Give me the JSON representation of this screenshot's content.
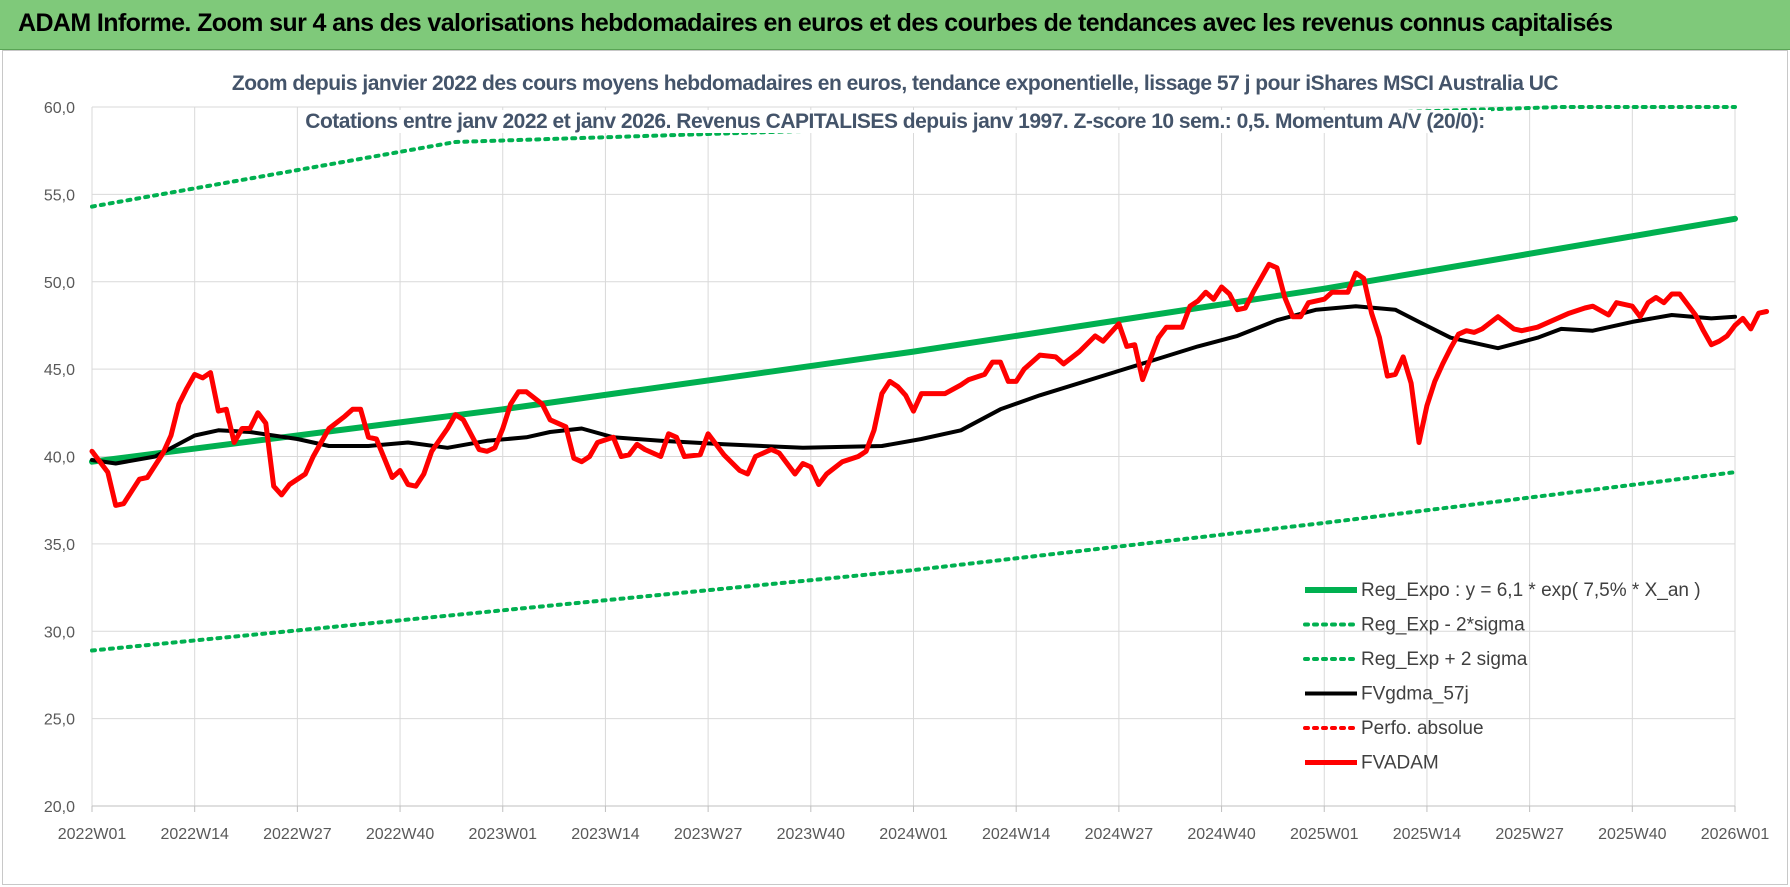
{
  "banner": {
    "title": "ADAM Informe. Zoom sur 4 ans des valorisations hebdomadaires en euros et des courbes de tendances avec les revenus connus capitalisés",
    "color": "#7fc97a"
  },
  "chart_data": {
    "type": "line",
    "title": "Zoom depuis janvier 2022 des cours moyens hebdomadaires en euros, tendance exponentielle, lissage 57 j pour iShares MSCI  Australia UC",
    "subtitle": "Cotations entre janv 2022 et janv 2026. Revenus CAPITALISES depuis janv 1997. Z-score 10 sem.: 0,5. Momentum A/V (20/0):",
    "xlabel": "",
    "ylabel": "",
    "ylim": [
      20,
      60
    ],
    "yticks": [
      "60,0",
      "55,0",
      "50,0",
      "45,0",
      "40,0",
      "35,0",
      "30,0",
      "25,0",
      "20,0"
    ],
    "ytick_values": [
      60,
      55,
      50,
      45,
      40,
      35,
      30,
      25,
      20
    ],
    "xticks": [
      "2022W01",
      "2022W14",
      "2022W27",
      "2022W40",
      "2023W01",
      "2023W14",
      "2023W27",
      "2023W40",
      "2024W01",
      "2024W14",
      "2024W27",
      "2024W40",
      "2025W01",
      "2025W14",
      "2025W27",
      "2025W40",
      "2026W01"
    ],
    "x_weeks": [
      0,
      13,
      26,
      39,
      52,
      65,
      78,
      91,
      104,
      117,
      130,
      143,
      156,
      169,
      182,
      195,
      208
    ],
    "grid": true,
    "legend_position": "bottom-right",
    "series": [
      {
        "name": "Reg_Expo : y = 6,1 * exp( 7,5% *  X_an )",
        "color": "#00b050",
        "style": "solid",
        "points": [
          [
            0,
            39.7
          ],
          [
            52,
            42.7
          ],
          [
            104,
            46.0
          ],
          [
            156,
            49.6
          ],
          [
            208,
            53.6
          ]
        ]
      },
      {
        "name": "Reg_Exp - 2*sigma",
        "color": "#00b050",
        "style": "dotted",
        "points": [
          [
            0,
            28.9
          ],
          [
            52,
            31.2
          ],
          [
            104,
            33.5
          ],
          [
            156,
            36.2
          ],
          [
            208,
            39.1
          ]
        ]
      },
      {
        "name": "Reg_Exp + 2 sigma",
        "color": "#00b050",
        "style": "dotted",
        "points": [
          [
            0,
            54.3
          ],
          [
            46,
            58.0
          ],
          [
            186,
            60.0
          ],
          [
            208,
            60.0
          ]
        ]
      },
      {
        "name": "FVgdma_57j",
        "color": "#000000",
        "style": "solid",
        "points": [
          [
            0,
            39.8
          ],
          [
            3,
            39.6
          ],
          [
            8,
            40.0
          ],
          [
            13,
            41.2
          ],
          [
            16,
            41.5
          ],
          [
            20,
            41.4
          ],
          [
            26,
            41.0
          ],
          [
            30,
            40.6
          ],
          [
            35,
            40.6
          ],
          [
            40,
            40.8
          ],
          [
            45,
            40.5
          ],
          [
            50,
            40.9
          ],
          [
            55,
            41.1
          ],
          [
            58,
            41.4
          ],
          [
            62,
            41.6
          ],
          [
            66,
            41.1
          ],
          [
            72,
            40.9
          ],
          [
            80,
            40.7
          ],
          [
            90,
            40.5
          ],
          [
            100,
            40.6
          ],
          [
            105,
            41.0
          ],
          [
            110,
            41.5
          ],
          [
            115,
            42.7
          ],
          [
            120,
            43.5
          ],
          [
            130,
            44.9
          ],
          [
            140,
            46.3
          ],
          [
            145,
            46.9
          ],
          [
            150,
            47.8
          ],
          [
            155,
            48.4
          ],
          [
            160,
            48.6
          ],
          [
            165,
            48.4
          ],
          [
            168,
            47.7
          ],
          [
            172,
            46.8
          ],
          [
            175,
            46.5
          ],
          [
            178,
            46.2
          ],
          [
            183,
            46.8
          ],
          [
            186,
            47.3
          ],
          [
            190,
            47.2
          ],
          [
            195,
            47.7
          ],
          [
            200,
            48.1
          ],
          [
            205,
            47.9
          ],
          [
            208,
            48.0
          ]
        ]
      },
      {
        "name": "Perfo. absolue",
        "color": "#ff0000",
        "style": "dotted",
        "points": []
      },
      {
        "name": "FVADAM",
        "color": "#ff0000",
        "style": "solid",
        "points": [
          [
            0,
            40.3
          ],
          [
            2,
            39.1
          ],
          [
            3,
            37.2
          ],
          [
            4,
            37.3
          ],
          [
            6,
            38.7
          ],
          [
            7,
            38.8
          ],
          [
            9,
            40.2
          ],
          [
            10,
            41.2
          ],
          [
            11,
            43.0
          ],
          [
            12,
            43.9
          ],
          [
            13,
            44.7
          ],
          [
            14,
            44.5
          ],
          [
            15,
            44.8
          ],
          [
            16,
            42.6
          ],
          [
            17,
            42.7
          ],
          [
            18,
            40.8
          ],
          [
            19,
            41.6
          ],
          [
            20,
            41.6
          ],
          [
            21,
            42.5
          ],
          [
            22,
            41.9
          ],
          [
            23,
            38.3
          ],
          [
            24,
            37.8
          ],
          [
            25,
            38.4
          ],
          [
            27,
            39.0
          ],
          [
            28,
            40.0
          ],
          [
            30,
            41.6
          ],
          [
            32,
            42.3
          ],
          [
            33,
            42.7
          ],
          [
            34,
            42.7
          ],
          [
            35,
            41.1
          ],
          [
            36,
            41.0
          ],
          [
            38,
            38.8
          ],
          [
            39,
            39.2
          ],
          [
            40,
            38.4
          ],
          [
            41,
            38.3
          ],
          [
            42,
            39.0
          ],
          [
            43,
            40.3
          ],
          [
            45,
            41.6
          ],
          [
            46,
            42.4
          ],
          [
            47,
            42.1
          ],
          [
            49,
            40.4
          ],
          [
            50,
            40.3
          ],
          [
            51,
            40.5
          ],
          [
            52,
            41.6
          ],
          [
            53,
            43.0
          ],
          [
            54,
            43.7
          ],
          [
            55,
            43.7
          ],
          [
            57,
            43.0
          ],
          [
            58,
            42.1
          ],
          [
            60,
            41.7
          ],
          [
            61,
            39.9
          ],
          [
            62,
            39.7
          ],
          [
            63,
            40.0
          ],
          [
            64,
            40.8
          ],
          [
            66,
            41.1
          ],
          [
            67,
            40.0
          ],
          [
            68,
            40.1
          ],
          [
            69,
            40.7
          ],
          [
            70,
            40.4
          ],
          [
            72,
            40.0
          ],
          [
            73,
            41.3
          ],
          [
            74,
            41.1
          ],
          [
            75,
            40.0
          ],
          [
            77,
            40.1
          ],
          [
            78,
            41.3
          ],
          [
            80,
            40.1
          ],
          [
            82,
            39.2
          ],
          [
            83,
            39.0
          ],
          [
            84,
            40.0
          ],
          [
            86,
            40.4
          ],
          [
            87,
            40.2
          ],
          [
            89,
            39.0
          ],
          [
            90,
            39.6
          ],
          [
            91,
            39.4
          ],
          [
            92,
            38.4
          ],
          [
            93,
            39.0
          ],
          [
            95,
            39.7
          ],
          [
            97,
            40.0
          ],
          [
            98,
            40.3
          ],
          [
            99,
            41.5
          ],
          [
            100,
            43.6
          ],
          [
            101,
            44.3
          ],
          [
            102,
            44.0
          ],
          [
            103,
            43.5
          ],
          [
            104,
            42.6
          ],
          [
            105,
            43.6
          ],
          [
            106,
            43.6
          ],
          [
            108,
            43.6
          ],
          [
            110,
            44.1
          ],
          [
            111,
            44.4
          ],
          [
            113,
            44.7
          ],
          [
            114,
            45.4
          ],
          [
            115,
            45.4
          ],
          [
            116,
            44.3
          ],
          [
            117,
            44.3
          ],
          [
            118,
            45.0
          ],
          [
            120,
            45.8
          ],
          [
            122,
            45.7
          ],
          [
            123,
            45.3
          ],
          [
            125,
            46.0
          ],
          [
            127,
            46.9
          ],
          [
            128,
            46.6
          ],
          [
            130,
            47.6
          ],
          [
            131,
            46.3
          ],
          [
            132,
            46.4
          ],
          [
            133,
            44.4
          ],
          [
            134,
            45.6
          ],
          [
            135,
            46.8
          ],
          [
            136,
            47.4
          ],
          [
            138,
            47.4
          ],
          [
            139,
            48.6
          ],
          [
            140,
            48.9
          ],
          [
            141,
            49.4
          ],
          [
            142,
            49.0
          ],
          [
            143,
            49.7
          ],
          [
            144,
            49.3
          ],
          [
            145,
            48.4
          ],
          [
            146,
            48.5
          ],
          [
            147,
            49.4
          ],
          [
            148,
            50.2
          ],
          [
            149,
            51.0
          ],
          [
            150,
            50.8
          ],
          [
            151,
            49.1
          ],
          [
            152,
            48.0
          ],
          [
            153,
            48.0
          ],
          [
            154,
            48.8
          ],
          [
            156,
            49.0
          ],
          [
            157,
            49.4
          ],
          [
            159,
            49.4
          ],
          [
            160,
            50.5
          ],
          [
            161,
            50.2
          ],
          [
            162,
            48.2
          ],
          [
            163,
            46.8
          ],
          [
            164,
            44.6
          ],
          [
            165,
            44.7
          ],
          [
            166,
            45.7
          ],
          [
            167,
            44.2
          ],
          [
            168,
            40.8
          ],
          [
            169,
            42.9
          ],
          [
            170,
            44.3
          ],
          [
            171,
            45.3
          ],
          [
            172,
            46.2
          ],
          [
            173,
            47.0
          ],
          [
            174,
            47.2
          ],
          [
            175,
            47.1
          ],
          [
            176,
            47.3
          ],
          [
            178,
            48.0
          ],
          [
            180,
            47.3
          ],
          [
            181,
            47.2
          ],
          [
            183,
            47.4
          ],
          [
            185,
            47.8
          ],
          [
            187,
            48.2
          ],
          [
            189,
            48.5
          ],
          [
            190,
            48.6
          ],
          [
            192,
            48.1
          ],
          [
            193,
            48.8
          ],
          [
            195,
            48.6
          ],
          [
            196,
            48.0
          ],
          [
            197,
            48.8
          ],
          [
            198,
            49.1
          ],
          [
            199,
            48.8
          ],
          [
            200,
            49.3
          ],
          [
            201,
            49.3
          ],
          [
            203,
            48.1
          ],
          [
            204,
            47.2
          ],
          [
            205,
            46.4
          ],
          [
            206,
            46.6
          ],
          [
            207,
            46.9
          ],
          [
            208,
            47.5
          ],
          [
            209,
            47.9
          ],
          [
            210,
            47.3
          ],
          [
            211,
            48.2
          ],
          [
            212,
            48.3
          ]
        ]
      }
    ]
  }
}
